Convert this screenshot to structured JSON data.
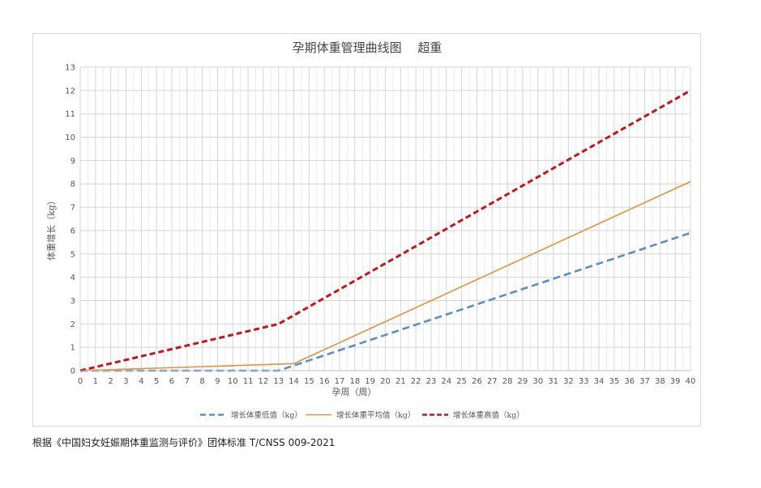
{
  "chart_data": {
    "type": "line",
    "title": "孕期体重管理曲线图　 超重",
    "xlabel": "孕周（周）",
    "ylabel": "体重增长（kg）",
    "xlim": [
      0,
      40
    ],
    "ylim": [
      0,
      13
    ],
    "x_ticks": [
      0,
      1,
      2,
      3,
      4,
      5,
      6,
      7,
      8,
      9,
      10,
      11,
      12,
      13,
      14,
      15,
      16,
      17,
      18,
      19,
      20,
      21,
      22,
      23,
      24,
      25,
      26,
      27,
      28,
      29,
      30,
      31,
      32,
      33,
      34,
      35,
      36,
      37,
      38,
      39,
      40
    ],
    "y_ticks": [
      0,
      1,
      2,
      3,
      4,
      5,
      6,
      7,
      8,
      9,
      10,
      11,
      12,
      13
    ],
    "grid": true,
    "legend_position": "bottom",
    "series": [
      {
        "name": "增长体重低值（kg）",
        "color": "#5b8fc0",
        "style": "dashed",
        "x": [
          0,
          13,
          40
        ],
        "y": [
          0,
          0,
          5.9
        ]
      },
      {
        "name": "增长体重平均值（kg）",
        "color": "#e0923e",
        "style": "solid",
        "x": [
          0,
          14,
          40
        ],
        "y": [
          0,
          0.3,
          8.1
        ]
      },
      {
        "name": "增长体重高值（kg）",
        "color": "#c4151c",
        "style": "dashed",
        "x": [
          0,
          13,
          40
        ],
        "y": [
          0,
          2,
          12
        ]
      }
    ]
  },
  "source_note": "根据《中国妇女妊娠期体重监测与评价》团体标准 T/CNSS 009-2021"
}
